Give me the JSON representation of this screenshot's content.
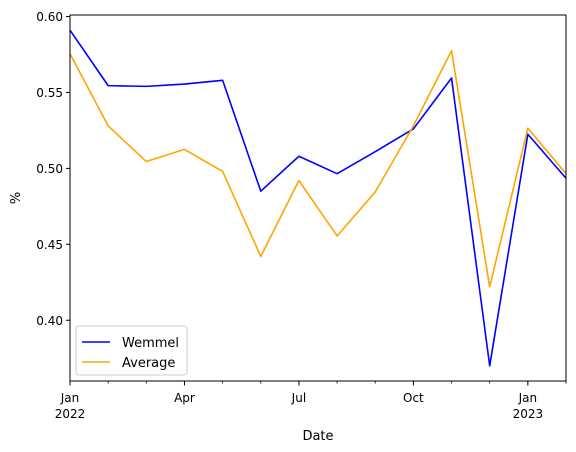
{
  "chart_data": {
    "type": "line",
    "xlabel": "Date",
    "ylabel": "%",
    "x": [
      "2022-01",
      "2022-02",
      "2022-03",
      "2022-04",
      "2022-05",
      "2022-06",
      "2022-07",
      "2022-08",
      "2022-09",
      "2022-10",
      "2022-11",
      "2022-12",
      "2023-01",
      "2023-02"
    ],
    "x_ticks": [
      {
        "date": "2022-01",
        "label": "Jan",
        "sublabel": "2022"
      },
      {
        "date": "2022-04",
        "label": "Apr",
        "sublabel": ""
      },
      {
        "date": "2022-07",
        "label": "Jul",
        "sublabel": ""
      },
      {
        "date": "2022-10",
        "label": "Oct",
        "sublabel": ""
      },
      {
        "date": "2023-01",
        "label": "Jan",
        "sublabel": "2023"
      }
    ],
    "y_ticks": [
      "0.40",
      "0.45",
      "0.50",
      "0.55",
      "0.60"
    ],
    "ylim": [
      0.36,
      0.601
    ],
    "grid": false,
    "legend_position": "lower-left",
    "series": [
      {
        "name": "Wemmel",
        "color": "#0000ff",
        "values": [
          0.591,
          0.5545,
          0.554,
          0.5555,
          0.558,
          0.485,
          0.508,
          0.4965,
          0.511,
          0.526,
          0.5595,
          0.37,
          0.5225,
          0.4935
        ]
      },
      {
        "name": "Average",
        "color": "#ffa500",
        "values": [
          0.5755,
          0.528,
          0.5045,
          0.5125,
          0.498,
          0.442,
          0.492,
          0.4555,
          0.4845,
          0.528,
          0.5775,
          0.422,
          0.5265,
          0.4965
        ]
      }
    ]
  }
}
